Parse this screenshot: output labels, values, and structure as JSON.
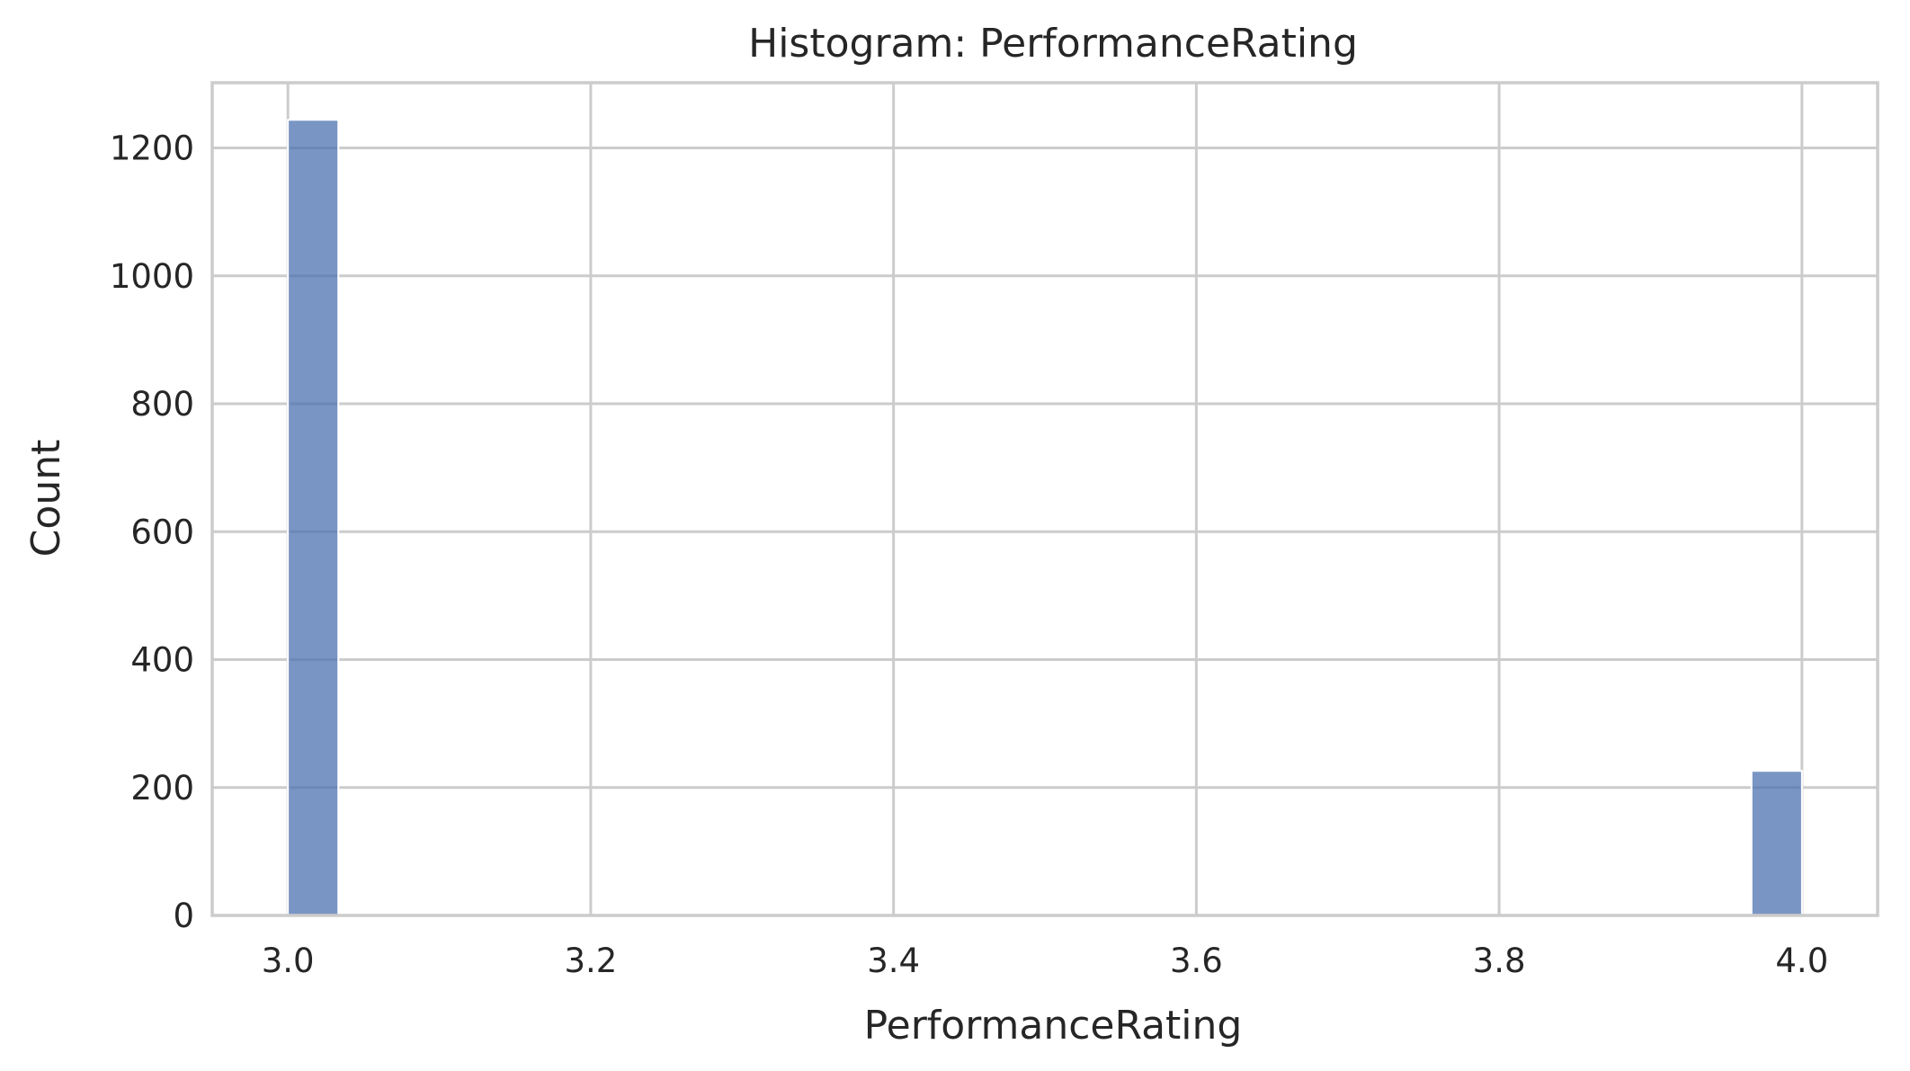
{
  "chart_data": {
    "type": "bar",
    "title": "Histogram: PerformanceRating",
    "xlabel": "PerformanceRating",
    "ylabel": "Count",
    "xlim": [
      2.95,
      4.05
    ],
    "ylim": [
      0,
      1302
    ],
    "x_ticks": [
      "3.0",
      "3.2",
      "3.4",
      "3.6",
      "3.8",
      "4.0"
    ],
    "y_ticks": [
      "0",
      "200",
      "400",
      "600",
      "800",
      "1000",
      "1200"
    ],
    "bars": [
      {
        "x_start": 3.0,
        "x_end": 3.0333,
        "value": 1244
      },
      {
        "x_start": 3.9667,
        "x_end": 4.0,
        "value": 226
      }
    ],
    "bar_color": "#4c72b0",
    "grid": true,
    "legend": "none"
  }
}
